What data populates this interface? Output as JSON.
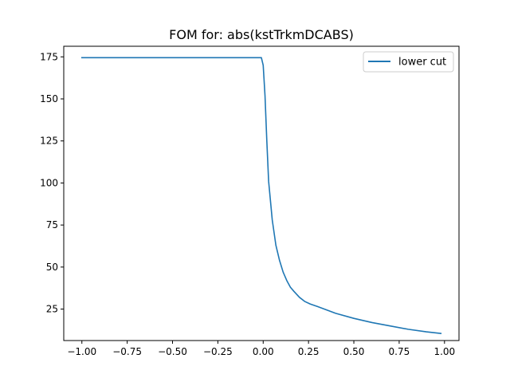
{
  "chart_data": {
    "type": "line",
    "title": "FOM for: abs(kstTrkmDCABS)",
    "xlabel": "",
    "ylabel": "",
    "xlim": [
      -1.1,
      1.08
    ],
    "ylim": [
      6.3,
      181.3
    ],
    "grid": false,
    "legend_position": "top-right",
    "x_ticks": [
      -1.0,
      -0.75,
      -0.5,
      -0.25,
      0.0,
      0.25,
      0.5,
      0.75,
      1.0
    ],
    "x_tick_labels": [
      "−1.00",
      "−0.75",
      "−0.50",
      "−0.25",
      "0.00",
      "0.25",
      "0.50",
      "0.75",
      "1.00"
    ],
    "y_ticks": [
      25,
      50,
      75,
      100,
      125,
      150,
      175
    ],
    "y_tick_labels": [
      "25",
      "50",
      "75",
      "100",
      "125",
      "150",
      "175"
    ],
    "series": [
      {
        "name": "lower cut",
        "color": "#1f77b4",
        "x": [
          -1.0,
          -0.5,
          -0.1,
          -0.01,
          0.0,
          0.01,
          0.02,
          0.03,
          0.05,
          0.07,
          0.09,
          0.11,
          0.13,
          0.15,
          0.17,
          0.2,
          0.23,
          0.26,
          0.3,
          0.35,
          0.4,
          0.5,
          0.6,
          0.7,
          0.8,
          0.9,
          0.98
        ],
        "y": [
          174.5,
          174.5,
          174.5,
          174.5,
          170,
          152,
          125,
          101,
          78,
          63,
          54,
          47,
          42,
          38,
          35.5,
          32,
          29.5,
          28,
          26.5,
          24.5,
          22.5,
          19.5,
          17,
          15,
          13,
          11.5,
          10.5
        ]
      }
    ]
  }
}
